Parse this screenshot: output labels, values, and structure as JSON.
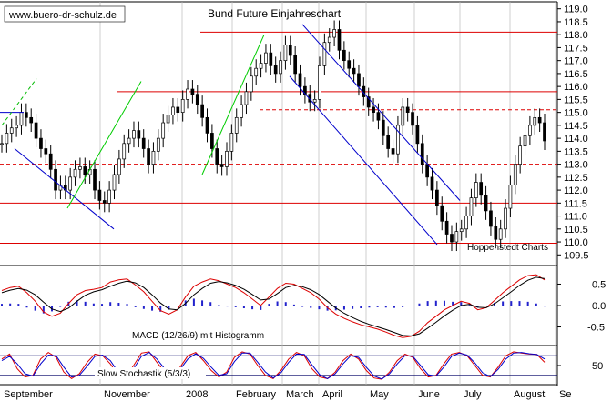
{
  "chart_data": [
    {
      "type": "candlestick",
      "title": "Bund Future Einjahreschart",
      "watermark": "www.buero-dr-schulz.de",
      "source": "Hoppenstedt Charts",
      "months": [
        "September",
        "November",
        "2008",
        "February",
        "March",
        "April",
        "May",
        "June",
        "July",
        "August",
        "Se"
      ],
      "yticks": [
        "109.5",
        "110.0",
        "110.5",
        "111.0",
        "111.5",
        "112.0",
        "112.5",
        "113.0",
        "113.5",
        "114.0",
        "114.5",
        "115.0",
        "115.5",
        "116.0",
        "116.5",
        "117.0",
        "117.5",
        "118.0",
        "118.5",
        "119.0"
      ],
      "ylim": [
        109.3,
        119.2
      ],
      "horizontal_lines": [
        {
          "value": 118.1,
          "style": "solid"
        },
        {
          "value": 115.8,
          "style": "solid"
        },
        {
          "value": 115.1,
          "style": "dashed"
        },
        {
          "value": 113.0,
          "style": "dashed"
        },
        {
          "value": 111.5,
          "style": "solid"
        },
        {
          "value": 109.95,
          "style": "solid"
        }
      ],
      "series": [
        {
          "values": [
            113.8,
            114.2,
            114.4,
            114.5,
            115.0,
            114.8,
            114.6,
            114.0,
            113.6,
            113.4,
            112.8,
            112.0,
            112.2,
            112.0,
            112.5,
            112.8,
            112.9,
            112.6,
            112.8,
            112.0,
            111.6,
            111.5,
            112.0,
            112.6,
            113.2,
            113.8,
            114.0,
            114.3,
            114.0,
            113.6,
            113.0,
            113.5,
            114.0,
            114.6,
            114.9,
            115.2,
            115.0,
            115.5,
            115.9,
            115.7,
            115.3,
            114.8,
            114.2,
            113.6,
            113.0,
            112.9,
            113.5,
            114.2,
            114.8,
            115.3,
            115.8,
            116.4,
            116.7,
            116.9,
            117.3,
            116.8,
            116.5,
            117.0,
            117.6,
            117.2,
            116.5,
            116.0,
            115.7,
            115.4,
            115.5,
            116.8,
            117.7,
            117.9,
            118.2,
            117.4,
            117.0,
            116.7,
            116.5,
            116.0,
            115.6,
            115.2,
            115.0,
            114.7,
            114.1,
            113.6,
            113.4,
            114.5,
            115.2,
            115.0,
            114.5,
            113.8,
            113.0,
            112.5,
            112.0,
            111.4,
            110.8,
            110.3,
            110.0,
            110.4,
            110.5,
            111.0,
            111.7,
            112.3,
            111.8,
            111.2,
            110.6,
            110.1,
            110.5,
            111.3,
            112.2,
            113.0,
            113.7,
            114.1,
            114.5,
            114.8,
            114.6,
            113.9
          ]
        }
      ]
    },
    {
      "type": "line",
      "title": "MACD (12/26/9) mit Histogramm",
      "yticks": [
        "0.5",
        "0.0",
        "-0.5"
      ],
      "ylim": [
        -0.85,
        0.85
      ],
      "series": [
        {
          "name": "MACD",
          "color": "#dd0000",
          "values": [
            0.35,
            0.42,
            0.45,
            0.3,
            0.1,
            -0.15,
            -0.25,
            -0.18,
            0.05,
            0.25,
            0.35,
            0.38,
            0.42,
            0.55,
            0.6,
            0.62,
            0.48,
            0.32,
            0.1,
            -0.12,
            -0.2,
            -0.1,
            0.2,
            0.45,
            0.55,
            0.62,
            0.58,
            0.5,
            0.42,
            0.3,
            0.15,
            0.0,
            0.2,
            0.4,
            0.52,
            0.5,
            0.4,
            0.3,
            0.15,
            -0.05,
            -0.2,
            -0.3,
            -0.38,
            -0.45,
            -0.5,
            -0.55,
            -0.62,
            -0.7,
            -0.75,
            -0.72,
            -0.6,
            -0.4,
            -0.25,
            -0.1,
            0.0,
            0.1,
            0.05,
            -0.1,
            -0.05,
            0.12,
            0.3,
            0.45,
            0.6,
            0.7,
            0.72,
            0.6
          ]
        },
        {
          "name": "Signal",
          "color": "#000000",
          "values": [
            0.3,
            0.36,
            0.4,
            0.36,
            0.25,
            0.08,
            -0.08,
            -0.14,
            -0.06,
            0.1,
            0.24,
            0.32,
            0.37,
            0.45,
            0.52,
            0.57,
            0.53,
            0.42,
            0.25,
            0.06,
            -0.08,
            -0.1,
            0.05,
            0.25,
            0.4,
            0.52,
            0.56,
            0.53,
            0.47,
            0.38,
            0.26,
            0.13,
            0.15,
            0.28,
            0.42,
            0.47,
            0.44,
            0.37,
            0.26,
            0.1,
            -0.06,
            -0.18,
            -0.28,
            -0.37,
            -0.44,
            -0.5,
            -0.56,
            -0.63,
            -0.7,
            -0.71,
            -0.66,
            -0.53,
            -0.39,
            -0.24,
            -0.11,
            0.0,
            0.03,
            -0.04,
            -0.05,
            0.04,
            0.18,
            0.32,
            0.47,
            0.59,
            0.66,
            0.63
          ]
        }
      ]
    },
    {
      "type": "line",
      "title": "Slow Stochastik (5/3/3)",
      "yticks": [
        "50"
      ],
      "ylim": [
        0,
        100
      ],
      "reference_lines": [
        80,
        20
      ],
      "series": [
        {
          "name": "%K",
          "color": "#dd0000",
          "values": [
            70,
            85,
            40,
            15,
            20,
            70,
            90,
            75,
            30,
            10,
            25,
            60,
            85,
            80,
            55,
            20,
            15,
            50,
            88,
            92,
            60,
            30,
            20,
            45,
            80,
            90,
            65,
            35,
            15,
            30,
            75,
            92,
            85,
            50,
            20,
            10,
            35,
            70,
            90,
            80,
            40,
            15,
            10,
            30,
            65,
            85,
            70,
            35,
            12,
            8,
            30,
            65,
            85,
            75,
            40,
            15,
            20,
            55,
            85,
            90,
            80,
            50,
            20,
            15,
            45,
            80,
            92,
            88,
            85,
            84,
            60
          ]
        },
        {
          "name": "%D",
          "color": "#0000cc",
          "values": [
            65,
            78,
            55,
            25,
            18,
            55,
            82,
            80,
            45,
            15,
            20,
            48,
            78,
            82,
            65,
            30,
            15,
            40,
            78,
            90,
            70,
            40,
            22,
            38,
            70,
            86,
            72,
            45,
            20,
            25,
            62,
            88,
            88,
            60,
            30,
            12,
            28,
            60,
            85,
            84,
            52,
            22,
            10,
            25,
            55,
            80,
            75,
            45,
            18,
            9,
            25,
            55,
            80,
            78,
            50,
            22,
            18,
            45,
            78,
            88,
            82,
            58,
            28,
            16,
            38,
            70,
            88,
            90,
            86,
            84,
            70
          ]
        }
      ]
    }
  ]
}
